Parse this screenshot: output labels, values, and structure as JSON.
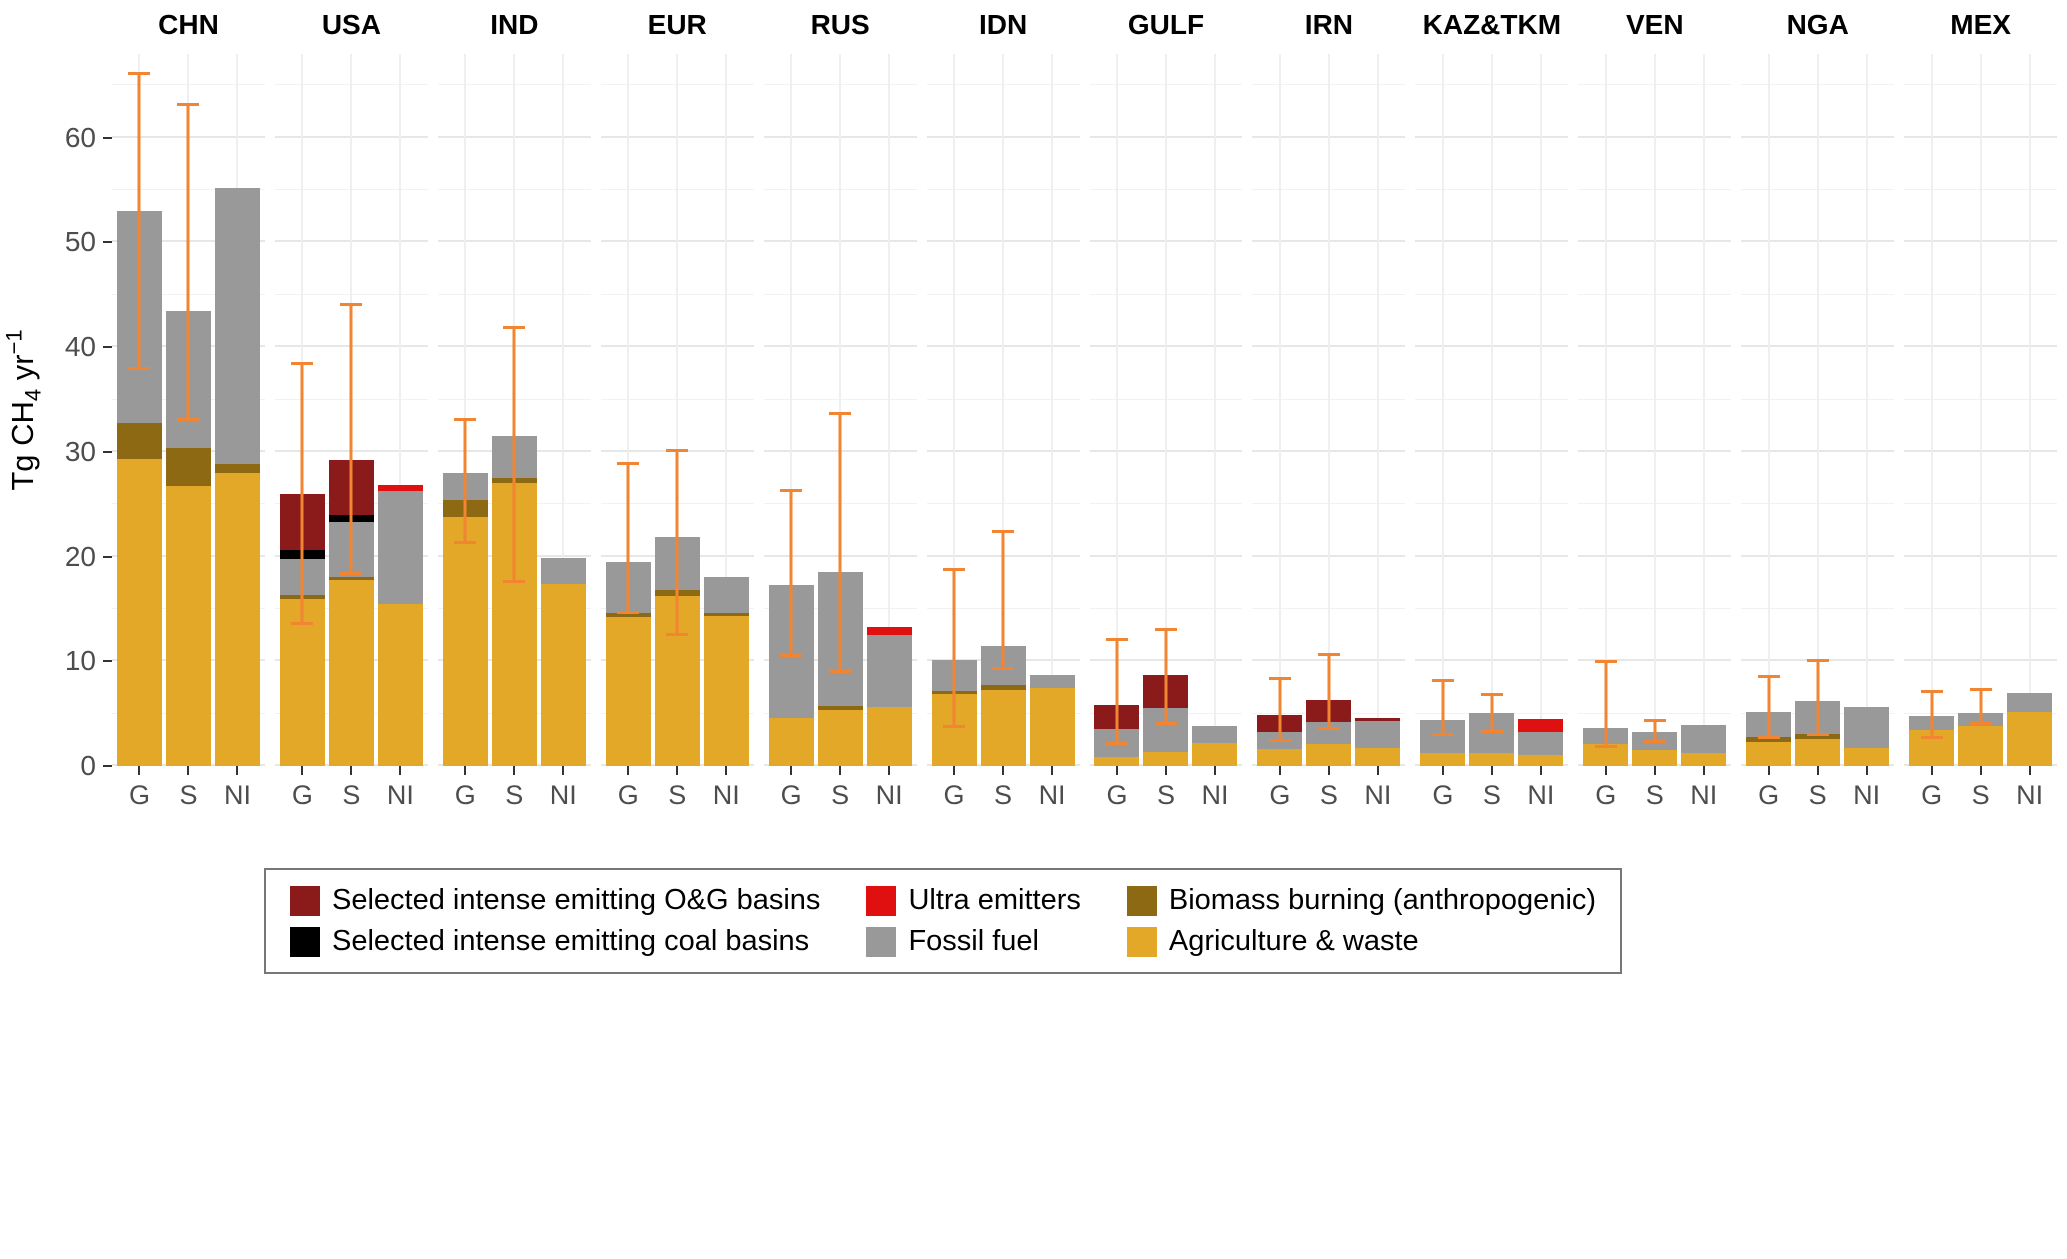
{
  "y_axis": {
    "title_pre": "Tg CH",
    "title_sub": "4",
    "title_mid": " yr",
    "title_sup": "−1",
    "ticks": [
      0,
      10,
      20,
      30,
      40,
      50,
      60
    ]
  },
  "colors": {
    "error_bar": "#F28531",
    "tick": "#333333"
  },
  "legend": {
    "order": [
      "og",
      "ultra",
      "biomass",
      "coal",
      "fossil",
      "agriculture"
    ]
  },
  "chart_data": {
    "type": "bar",
    "stacked": true,
    "ylabel": "Tg CH4 yr-1",
    "ylim": [
      0,
      68
    ],
    "grid": "on",
    "legend_position": "bottom",
    "bar_labels": [
      "G",
      "S",
      "NI"
    ],
    "segments": [
      {
        "key": "agriculture",
        "label": "Agriculture & waste",
        "color": "#E4A829"
      },
      {
        "key": "biomass",
        "label": "Biomass burning (anthropogenic)",
        "color": "#8D6914"
      },
      {
        "key": "fossil",
        "label": "Fossil fuel",
        "color": "#999999"
      },
      {
        "key": "coal",
        "label": "Selected intense emitting coal basins",
        "color": "#000000"
      },
      {
        "key": "og",
        "label": "Selected intense emitting O&G basins",
        "color": "#8B1A1A"
      },
      {
        "key": "ultra",
        "label": "Ultra emitters",
        "color": "#E01010"
      }
    ],
    "regions": [
      {
        "name": "CHN",
        "bars": [
          {
            "label": "G",
            "values": {
              "agriculture": 29.3,
              "biomass": 3.5,
              "fossil": 20.2
            },
            "error": [
              37.8,
              66.3
            ]
          },
          {
            "label": "S",
            "values": {
              "agriculture": 26.7,
              "biomass": 3.7,
              "fossil": 13.1
            },
            "error": [
              33.0,
              63.3
            ]
          },
          {
            "label": "NI",
            "values": {
              "agriculture": 28.0,
              "biomass": 0.8,
              "fossil": 26.4
            }
          }
        ]
      },
      {
        "name": "USA",
        "bars": [
          {
            "label": "G",
            "values": {
              "agriculture": 16.0,
              "biomass": 0.3,
              "fossil": 3.5,
              "coal": 0.8,
              "og": 5.4
            },
            "error": [
              13.5,
              38.6
            ]
          },
          {
            "label": "S",
            "values": {
              "agriculture": 17.8,
              "biomass": 0.3,
              "fossil": 5.2,
              "coal": 0.7,
              "og": 5.2
            },
            "error": [
              18.2,
              44.2
            ]
          },
          {
            "label": "NI",
            "values": {
              "agriculture": 15.5,
              "fossil": 10.8,
              "ultra": 0.5
            }
          }
        ]
      },
      {
        "name": "IND",
        "bars": [
          {
            "label": "G",
            "values": {
              "agriculture": 23.8,
              "biomass": 1.6,
              "fossil": 2.6
            },
            "error": [
              21.2,
              33.2
            ]
          },
          {
            "label": "S",
            "values": {
              "agriculture": 27.0,
              "biomass": 0.5,
              "fossil": 4.0
            },
            "error": [
              17.5,
              42.0
            ]
          },
          {
            "label": "NI",
            "values": {
              "agriculture": 17.4,
              "fossil": 2.5
            }
          }
        ]
      },
      {
        "name": "EUR",
        "bars": [
          {
            "label": "G",
            "values": {
              "agriculture": 14.2,
              "biomass": 0.4,
              "fossil": 4.9
            },
            "error": [
              14.5,
              29.0
            ]
          },
          {
            "label": "S",
            "values": {
              "agriculture": 16.2,
              "biomass": 0.6,
              "fossil": 5.1
            },
            "error": [
              12.4,
              30.3
            ]
          },
          {
            "label": "NI",
            "values": {
              "agriculture": 14.3,
              "biomass": 0.3,
              "fossil": 3.5
            }
          }
        ]
      },
      {
        "name": "RUS",
        "bars": [
          {
            "label": "G",
            "values": {
              "agriculture": 4.6,
              "fossil": 12.7
            },
            "error": [
              10.4,
              26.5
            ]
          },
          {
            "label": "S",
            "values": {
              "agriculture": 5.4,
              "biomass": 0.3,
              "fossil": 12.8
            },
            "error": [
              8.9,
              33.8
            ]
          },
          {
            "label": "NI",
            "values": {
              "agriculture": 5.6,
              "fossil": 6.9,
              "ultra": 0.8
            }
          }
        ]
      },
      {
        "name": "IDN",
        "bars": [
          {
            "label": "G",
            "values": {
              "agriculture": 6.9,
              "biomass": 0.3,
              "fossil": 2.9
            },
            "error": [
              3.6,
              18.9
            ]
          },
          {
            "label": "S",
            "values": {
              "agriculture": 7.3,
              "biomass": 0.4,
              "fossil": 3.8
            },
            "error": [
              9.2,
              22.5
            ]
          },
          {
            "label": "NI",
            "values": {
              "agriculture": 7.5,
              "fossil": 1.2
            }
          }
        ]
      },
      {
        "name": "GULF",
        "bars": [
          {
            "label": "G",
            "values": {
              "agriculture": 0.9,
              "fossil": 2.6,
              "og": 2.3
            },
            "error": [
              2.0,
              12.2
            ]
          },
          {
            "label": "S",
            "values": {
              "agriculture": 1.3,
              "fossil": 4.2,
              "og": 3.2
            },
            "error": [
              3.9,
              13.2
            ]
          },
          {
            "label": "NI",
            "values": {
              "agriculture": 2.2,
              "fossil": 1.6
            }
          }
        ]
      },
      {
        "name": "IRN",
        "bars": [
          {
            "label": "G",
            "values": {
              "agriculture": 1.6,
              "fossil": 1.6,
              "og": 1.7
            },
            "error": [
              2.3,
              8.5
            ]
          },
          {
            "label": "S",
            "values": {
              "agriculture": 2.1,
              "fossil": 2.1,
              "og": 2.1
            },
            "error": [
              3.4,
              10.8
            ]
          },
          {
            "label": "NI",
            "values": {
              "agriculture": 1.7,
              "fossil": 2.6,
              "og": 0.3
            }
          }
        ]
      },
      {
        "name": "KAZ&TKM",
        "bars": [
          {
            "label": "G",
            "values": {
              "agriculture": 1.2,
              "fossil": 3.2
            },
            "error": [
              2.9,
              8.3
            ]
          },
          {
            "label": "S",
            "values": {
              "agriculture": 1.2,
              "fossil": 3.9
            },
            "error": [
              3.2,
              7.0
            ]
          },
          {
            "label": "NI",
            "values": {
              "agriculture": 1.1,
              "fossil": 2.2,
              "ultra": 1.2
            }
          }
        ]
      },
      {
        "name": "VEN",
        "bars": [
          {
            "label": "G",
            "values": {
              "agriculture": 2.1,
              "fossil": 1.5
            },
            "error": [
              1.7,
              10.1
            ]
          },
          {
            "label": "S",
            "values": {
              "agriculture": 1.5,
              "fossil": 1.8
            },
            "error": [
              2.2,
              4.5
            ]
          },
          {
            "label": "NI",
            "values": {
              "agriculture": 1.2,
              "fossil": 2.7
            }
          }
        ]
      },
      {
        "name": "NGA",
        "bars": [
          {
            "label": "G",
            "values": {
              "agriculture": 2.3,
              "biomass": 0.5,
              "fossil": 2.4
            },
            "error": [
              2.6,
              8.7
            ]
          },
          {
            "label": "S",
            "values": {
              "agriculture": 2.6,
              "biomass": 0.5,
              "fossil": 3.1
            },
            "error": [
              2.9,
              10.2
            ]
          },
          {
            "label": "NI",
            "values": {
              "agriculture": 1.7,
              "fossil": 3.9
            }
          }
        ]
      },
      {
        "name": "MEX",
        "bars": [
          {
            "label": "G",
            "values": {
              "agriculture": 3.4,
              "fossil": 1.4
            },
            "error": [
              2.6,
              7.3
            ]
          },
          {
            "label": "S",
            "values": {
              "agriculture": 3.8,
              "fossil": 1.3
            },
            "error": [
              3.9,
              7.5
            ]
          },
          {
            "label": "NI",
            "values": {
              "agriculture": 5.2,
              "fossil": 1.8
            }
          }
        ]
      }
    ]
  }
}
